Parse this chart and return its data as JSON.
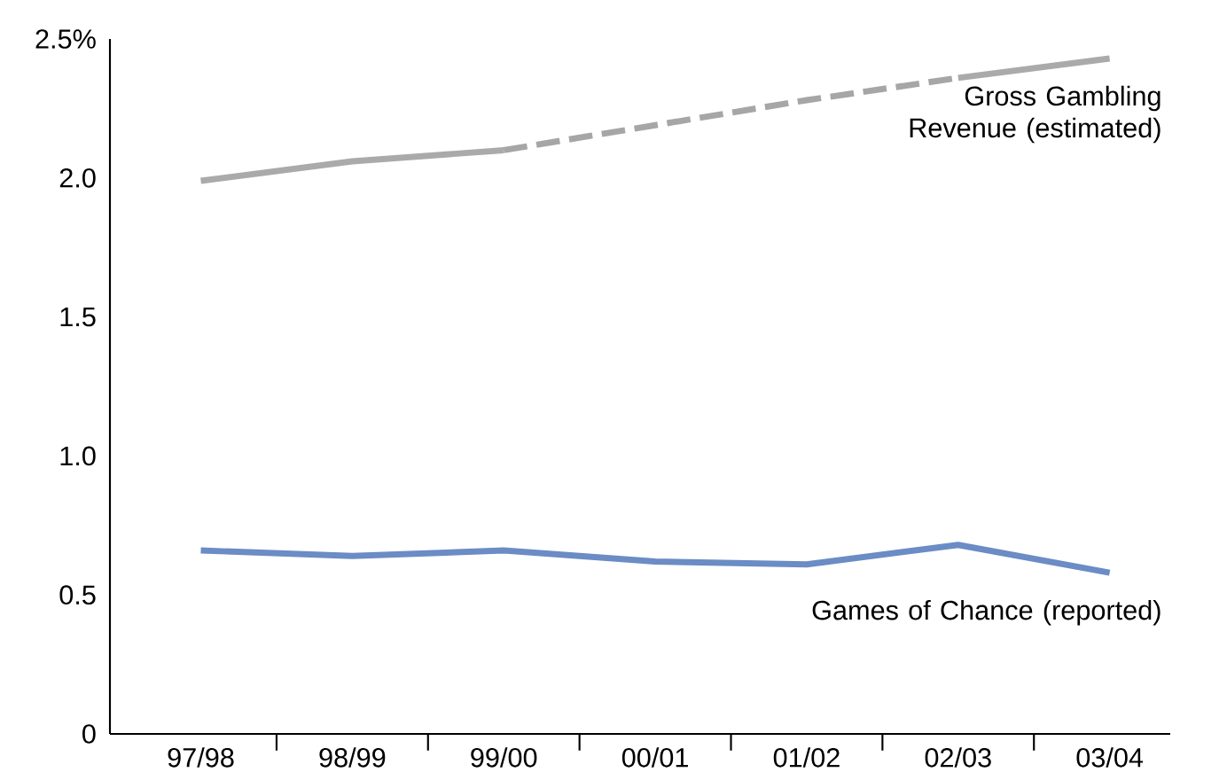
{
  "chart_data": {
    "type": "line",
    "categories": [
      "97/98",
      "98/99",
      "99/00",
      "00/01",
      "01/02",
      "02/03",
      "03/04"
    ],
    "series": [
      {
        "name": "Gross Gambling Revenue (estimated)",
        "color": "#aaaaaa",
        "line_style": "solid",
        "values": [
          1.99,
          2.06,
          2.1,
          null,
          null,
          2.36,
          2.43
        ]
      },
      {
        "color": "#a6a6a6",
        "line_style": "dashed",
        "values": [
          null,
          null,
          2.1,
          2.19,
          2.28,
          2.36,
          null
        ]
      },
      {
        "name": "Games of Chance (reported)",
        "color": "#6b8cc4",
        "line_style": "solid",
        "values": [
          0.66,
          0.64,
          0.66,
          0.62,
          0.61,
          0.68,
          0.58
        ]
      }
    ],
    "ylim": [
      0,
      2.5
    ],
    "yticks": [
      {
        "value": 0,
        "label": "0"
      },
      {
        "value": 0.5,
        "label": "0.5"
      },
      {
        "value": 1.0,
        "label": "1.0"
      },
      {
        "value": 1.5,
        "label": "1.5"
      },
      {
        "value": 2.0,
        "label": "2.0"
      },
      {
        "value": 2.5,
        "label": "2.5%"
      }
    ],
    "grid": false,
    "marker": "none"
  }
}
